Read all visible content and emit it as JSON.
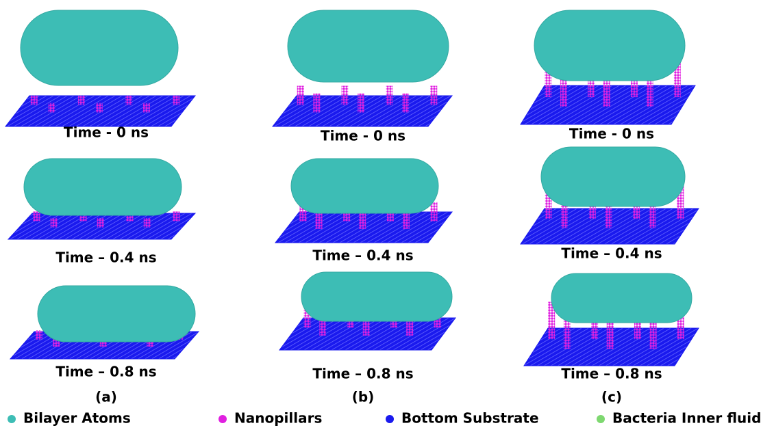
{
  "panels": [
    {
      "label": "(a)",
      "snapshots": [
        {
          "caption": "Time - 0 ns"
        },
        {
          "caption": "Time – 0.4 ns"
        },
        {
          "caption": "Time – 0.8 ns"
        }
      ]
    },
    {
      "label": "(b)",
      "snapshots": [
        {
          "caption": "Time - 0 ns"
        },
        {
          "caption": "Time – 0.4 ns"
        },
        {
          "caption": "Time – 0.8 ns"
        }
      ]
    },
    {
      "label": "(c)",
      "snapshots": [
        {
          "caption": "Time - 0 ns"
        },
        {
          "caption": "Time – 0.4 ns"
        },
        {
          "caption": "Time – 0.8 ns"
        }
      ]
    }
  ],
  "legend": [
    {
      "label": "Bilayer Atoms",
      "color": "#3dbdb5"
    },
    {
      "label": "Nanopillars",
      "color": "#e020e0"
    },
    {
      "label": "Bottom Substrate",
      "color": "#1a1aee"
    },
    {
      "label": "Bacteria Inner fluid",
      "color": "#7ed870"
    }
  ]
}
